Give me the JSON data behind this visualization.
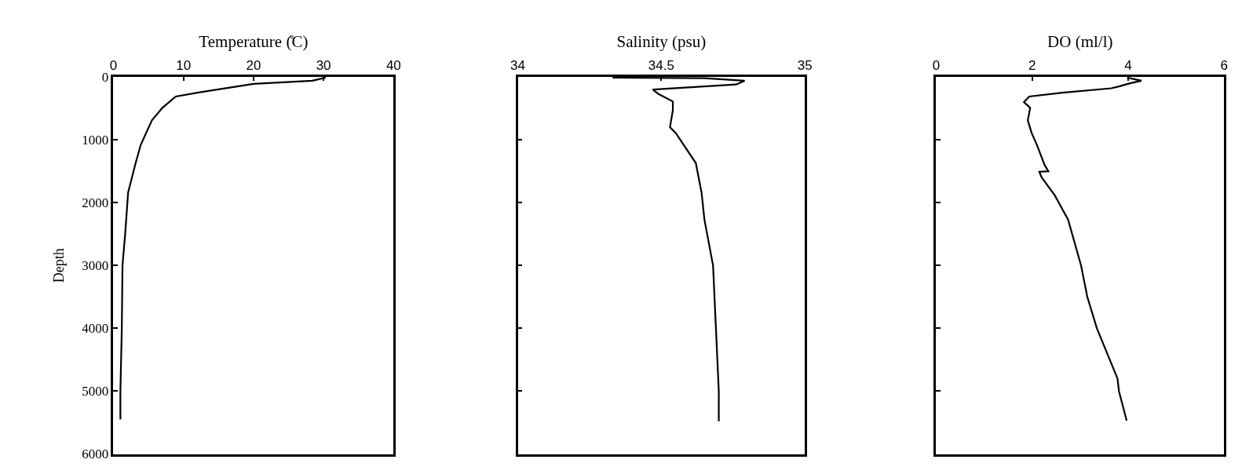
{
  "chart_data": [
    {
      "type": "line",
      "xlabel": "Temperature (̊C)",
      "ylabel": "Depth",
      "xlim": [
        0,
        40
      ],
      "xticks": [
        0,
        10,
        20,
        30,
        40
      ],
      "ylim": [
        6000,
        0
      ],
      "yticks": [
        0,
        1000,
        2000,
        3000,
        4000,
        5000,
        6000
      ],
      "marker": "none",
      "line_style": "solid",
      "series": [
        {
          "color": "#000000",
          "x": [
            30.3,
            28.4,
            20,
            12.5,
            8.9,
            7.0,
            5.5,
            3.9,
            3.1,
            2.1,
            1.7,
            1.3,
            1.2,
            1.0,
            1.0
          ],
          "values": [
            10,
            60,
            110,
            240,
            310,
            490,
            690,
            1080,
            1400,
            1840,
            2470,
            3000,
            4000,
            5000,
            5450
          ]
        }
      ]
    },
    {
      "type": "line",
      "xlabel": "Salinity (psu)",
      "xlim": [
        34,
        35
      ],
      "xticks": [
        34,
        34.5,
        35
      ],
      "ylim": [
        6000,
        0
      ],
      "yticks": [
        0,
        1000,
        2000,
        3000,
        4000,
        5000,
        6000
      ],
      "tick_labels": "x",
      "marker": "none",
      "line_style": "solid",
      "series": [
        {
          "color": "#000000",
          "x": [
            34.33,
            34.65,
            34.79,
            34.76,
            34.47,
            34.49,
            34.54,
            34.54,
            34.53,
            34.55,
            34.62,
            34.64,
            34.65,
            34.68,
            34.69,
            34.7,
            34.7
          ],
          "values": [
            10,
            20,
            60,
            120,
            200,
            270,
            390,
            530,
            800,
            890,
            1370,
            1840,
            2270,
            3000,
            4000,
            5000,
            5480
          ]
        }
      ]
    },
    {
      "type": "line",
      "xlabel": "DO (ml/l)",
      "xlim": [
        0,
        6
      ],
      "xticks": [
        0,
        2,
        4,
        6
      ],
      "ylim": [
        6000,
        0
      ],
      "yticks": [
        0,
        1000,
        2000,
        3000,
        4000,
        5000,
        6000
      ],
      "tick_labels": "x",
      "marker": "none",
      "line_style": "solid",
      "series": [
        {
          "color": "#000000",
          "x": [
            3.98,
            4.28,
            4.04,
            3.81,
            3.65,
            2.63,
            1.94,
            1.83,
            1.96,
            1.91,
            1.99,
            2.1,
            2.26,
            2.34,
            2.15,
            2.2,
            2.47,
            2.75,
            3.02,
            3.15,
            3.35,
            3.78,
            3.81,
            3.97
          ],
          "values": [
            10,
            60,
            100,
            150,
            180,
            250,
            310,
            400,
            490,
            690,
            890,
            1080,
            1400,
            1500,
            1510,
            1600,
            1880,
            2270,
            3000,
            3500,
            4000,
            4800,
            5000,
            5470
          ]
        }
      ]
    }
  ]
}
